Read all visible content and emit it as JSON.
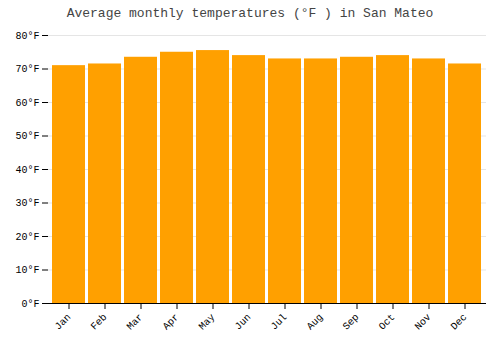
{
  "chart_data": {
    "type": "bar",
    "title": "Average monthly temperatures (°F ) in San Mateo",
    "categories": [
      "Jan",
      "Feb",
      "Mar",
      "Apr",
      "May",
      "Jun",
      "Jul",
      "Aug",
      "Sep",
      "Oct",
      "Nov",
      "Dec"
    ],
    "values": [
      71,
      71.5,
      73.5,
      75,
      75.5,
      74,
      73,
      73,
      73.5,
      74,
      73,
      71.5
    ],
    "color": "#FFA000",
    "ylim": [
      0,
      80
    ],
    "yticks": [
      {
        "value": 0,
        "label": "0°F"
      },
      {
        "value": 10,
        "label": "10°F"
      },
      {
        "value": 20,
        "label": "20°F"
      },
      {
        "value": 30,
        "label": "30°F"
      },
      {
        "value": 40,
        "label": "40°F"
      },
      {
        "value": 50,
        "label": "50°F"
      },
      {
        "value": 60,
        "label": "60°F"
      },
      {
        "value": 70,
        "label": "70°F"
      },
      {
        "value": 80,
        "label": "80°F"
      }
    ],
    "grid": true
  }
}
